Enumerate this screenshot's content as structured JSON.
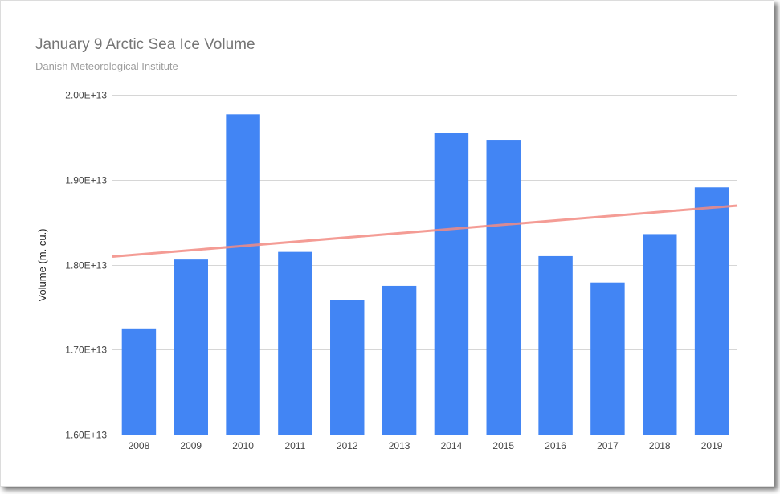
{
  "chart_data": {
    "type": "bar",
    "title": "January 9 Arctic Sea Ice Volume",
    "subtitle": "Danish Meteorological Institute",
    "xlabel": "",
    "ylabel": "Volume (m. cu.)",
    "categories": [
      "2008",
      "2009",
      "2010",
      "2011",
      "2012",
      "2013",
      "2014",
      "2015",
      "2016",
      "2017",
      "2018",
      "2019"
    ],
    "series": [
      {
        "values": [
          17250000000000.0,
          18060000000000.0,
          19770000000000.0,
          18150000000000.0,
          17580000000000.0,
          17750000000000.0,
          19550000000000.0,
          19470000000000.0,
          18100000000000.0,
          17790000000000.0,
          18360000000000.0,
          18910000000000.0
        ],
        "color": "#4285f4"
      }
    ],
    "trendline": {
      "type": "linear",
      "color": "#f28b82"
    },
    "ylim": [
      16000000000000.0,
      20000000000000.0
    ],
    "yticks": [
      16000000000000.0,
      17000000000000.0,
      18000000000000.0,
      19000000000000.0,
      20000000000000.0
    ],
    "ytick_labels": [
      "1.60E+13",
      "1.70E+13",
      "1.80E+13",
      "1.90E+13",
      "2.00E+13"
    ],
    "grid": true,
    "legend": "none"
  }
}
